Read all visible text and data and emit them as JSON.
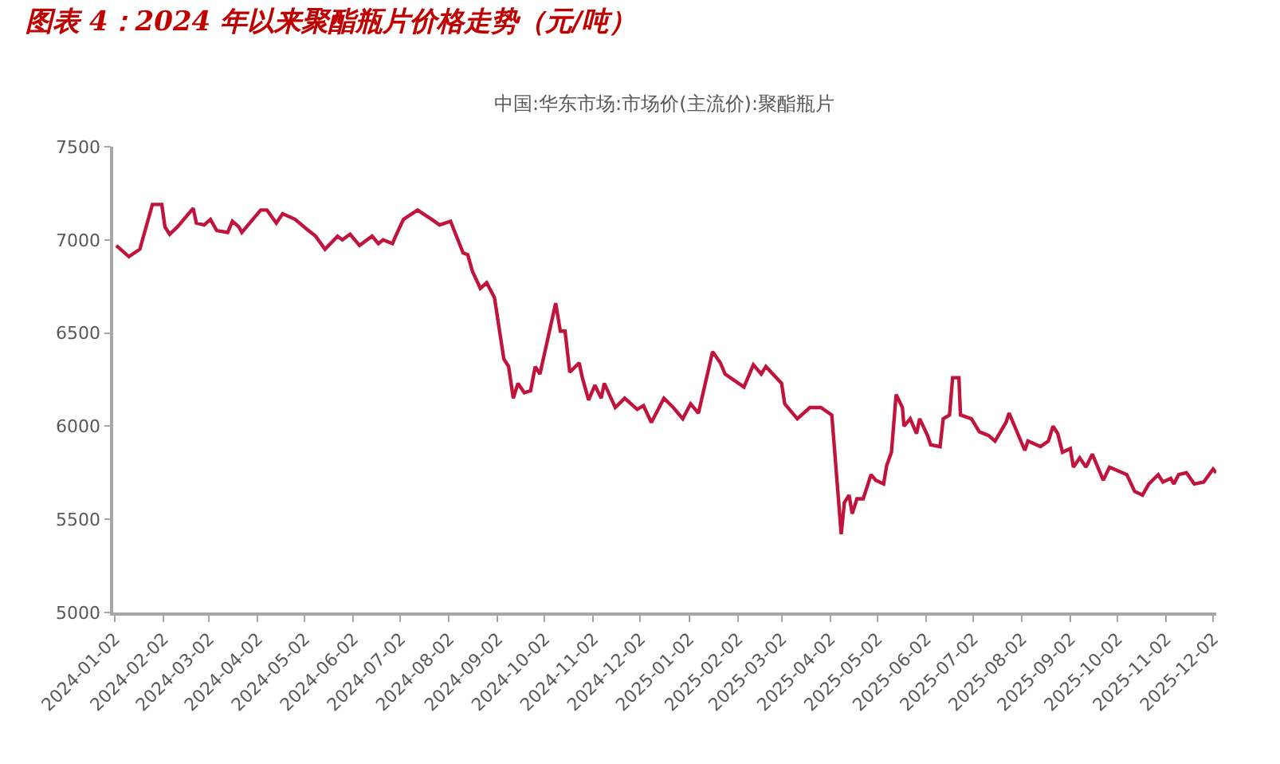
{
  "chart_data": {
    "type": "line",
    "title": "图表 4：2024 年以来聚酯瓶片价格走势（元/吨）",
    "subtitle": "中国:华东市场:市场价(主流价):聚酯瓶片",
    "x": [
      "2024-01-03",
      "2024-01-11",
      "2024-01-18",
      "2024-01-26",
      "2024-02-01",
      "2024-02-03",
      "2024-02-06",
      "2024-02-11",
      "2024-02-21",
      "2024-02-23",
      "2024-02-28",
      "2024-03-03",
      "2024-03-07",
      "2024-03-14",
      "2024-03-17",
      "2024-03-21",
      "2024-03-23",
      "2024-04-04",
      "2024-04-08",
      "2024-04-14",
      "2024-04-18",
      "2024-04-26",
      "2024-05-03",
      "2024-05-09",
      "2024-05-15",
      "2024-05-23",
      "2024-05-26",
      "2024-05-31",
      "2024-06-06",
      "2024-06-14",
      "2024-06-18",
      "2024-06-21",
      "2024-06-27",
      "2024-06-29",
      "2024-07-04",
      "2024-07-13",
      "2024-07-22",
      "2024-07-27",
      "2024-08-03",
      "2024-08-11",
      "2024-08-14",
      "2024-08-17",
      "2024-08-22",
      "2024-08-26",
      "2024-08-31",
      "2024-09-06",
      "2024-09-09",
      "2024-09-12",
      "2024-09-15",
      "2024-09-19",
      "2024-09-23",
      "2024-09-26",
      "2024-09-29",
      "2024-10-09",
      "2024-10-12",
      "2024-10-15",
      "2024-10-18",
      "2024-10-24",
      "2024-10-26",
      "2024-10-30",
      "2024-11-03",
      "2024-11-07",
      "2024-11-09",
      "2024-11-16",
      "2024-11-22",
      "2024-11-30",
      "2024-12-04",
      "2024-12-09",
      "2024-12-17",
      "2024-12-23",
      "2024-12-29",
      "2025-01-03",
      "2025-01-08",
      "2025-01-17",
      "2025-01-22",
      "2025-01-25",
      "2025-02-06",
      "2025-02-12",
      "2025-02-17",
      "2025-02-20",
      "2025-03-02",
      "2025-03-04",
      "2025-03-12",
      "2025-03-20",
      "2025-03-27",
      "2025-04-03",
      "2025-04-09",
      "2025-04-11",
      "2025-04-14",
      "2025-04-16",
      "2025-04-19",
      "2025-04-23",
      "2025-04-28",
      "2025-05-01",
      "2025-05-06",
      "2025-05-08",
      "2025-05-11",
      "2025-05-14",
      "2025-05-18",
      "2025-05-19",
      "2025-05-23",
      "2025-05-27",
      "2025-05-29",
      "2025-06-03",
      "2025-06-05",
      "2025-06-11",
      "2025-06-13",
      "2025-06-17",
      "2025-06-19",
      "2025-06-23",
      "2025-06-24",
      "2025-07-01",
      "2025-07-06",
      "2025-07-12",
      "2025-07-16",
      "2025-07-23",
      "2025-07-25",
      "2025-07-29",
      "2025-08-04",
      "2025-08-06",
      "2025-08-14",
      "2025-08-19",
      "2025-08-22",
      "2025-08-25",
      "2025-08-28",
      "2025-09-02",
      "2025-09-04",
      "2025-09-08",
      "2025-09-12",
      "2025-09-16",
      "2025-09-23",
      "2025-09-27",
      "2025-10-08",
      "2025-10-13",
      "2025-10-18",
      "2025-10-22",
      "2025-10-28",
      "2025-10-31",
      "2025-11-05",
      "2025-11-07",
      "2025-11-10",
      "2025-11-15",
      "2025-11-20",
      "2025-11-26",
      "2025-12-02",
      "2025-12-04"
    ],
    "series": [
      {
        "color": "#c0143c",
        "values": [
          6970,
          6910,
          6950,
          7190,
          7190,
          7070,
          7030,
          7070,
          7170,
          7090,
          7080,
          7110,
          7050,
          7040,
          7100,
          7070,
          7040,
          7160,
          7160,
          7090,
          7140,
          7110,
          7060,
          7020,
          6950,
          7020,
          7000,
          7030,
          6970,
          7020,
          6980,
          7000,
          6980,
          7020,
          7110,
          7160,
          7110,
          7080,
          7100,
          6930,
          6920,
          6830,
          6740,
          6770,
          6690,
          6360,
          6320,
          6150,
          6230,
          6180,
          6190,
          6320,
          6280,
          6660,
          6510,
          6510,
          6290,
          6340,
          6260,
          6140,
          6220,
          6150,
          6230,
          6100,
          6150,
          6090,
          6110,
          6020,
          6150,
          6100,
          6040,
          6120,
          6070,
          6400,
          6340,
          6280,
          6210,
          6330,
          6280,
          6320,
          6230,
          6120,
          6040,
          6100,
          6100,
          6060,
          5420,
          5590,
          5630,
          5530,
          5610,
          5610,
          5740,
          5710,
          5690,
          5790,
          5860,
          6170,
          6100,
          6000,
          6040,
          5960,
          6040,
          5950,
          5900,
          5890,
          6040,
          6060,
          6260,
          6260,
          6060,
          6040,
          5970,
          5950,
          5920,
          6020,
          6070,
          5990,
          5870,
          5920,
          5890,
          5920,
          6000,
          5960,
          5860,
          5880,
          5780,
          5830,
          5780,
          5850,
          5710,
          5780,
          5740,
          5650,
          5630,
          5690,
          5740,
          5700,
          5720,
          5690,
          5740,
          5750,
          5690,
          5700,
          5770,
          5750
        ]
      }
    ],
    "xlim": [
      "2024-01-01",
      "2025-12-04"
    ],
    "xticks": [
      "2024-01-02",
      "2024-02-02",
      "2024-03-02",
      "2024-04-02",
      "2024-05-02",
      "2024-06-02",
      "2024-07-02",
      "2024-08-02",
      "2024-09-02",
      "2024-10-02",
      "2024-11-02",
      "2024-12-02",
      "2025-01-02",
      "2025-02-02",
      "2025-03-02",
      "2025-04-02",
      "2025-05-02",
      "2025-06-02",
      "2025-07-02",
      "2025-08-02",
      "2025-09-02",
      "2025-10-02",
      "2025-11-02",
      "2025-12-02"
    ],
    "ylim": [
      5000,
      7500
    ],
    "yticks": [
      5000,
      5500,
      6000,
      6500,
      7000,
      7500
    ],
    "marker": "none",
    "line_style": "solid"
  }
}
